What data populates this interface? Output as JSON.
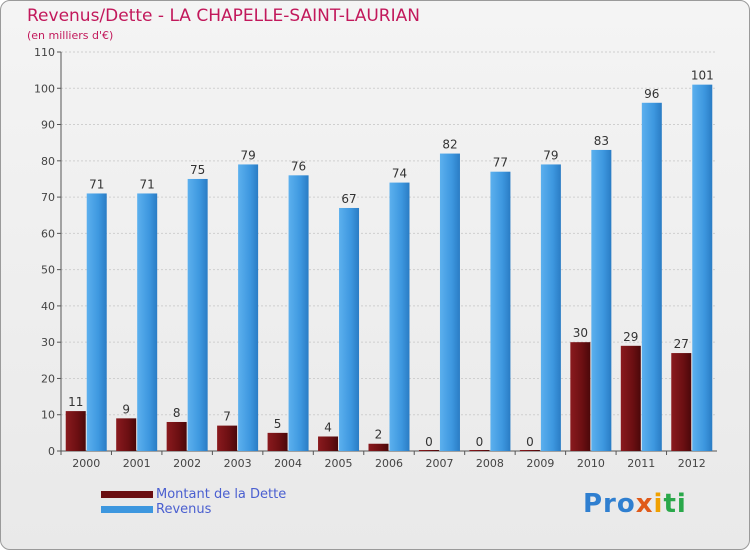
{
  "header": {
    "title": "Revenus/Dette - LA CHAPELLE-SAINT-LAURIAN",
    "subtitle": "(en milliers d'€)"
  },
  "logo": {
    "part1": "Pro",
    "part2": "x",
    "part3": "i",
    "part4": "ti"
  },
  "colors": {
    "dette": "#6b0f12",
    "revenus": "#3d97df",
    "title": "#c2185b",
    "legend_text": "#4a5fd0"
  },
  "chart_data": {
    "type": "bar",
    "title": "Revenus/Dette - LA CHAPELLE-SAINT-LAURIAN",
    "ylabel": "(en milliers d'€)",
    "xlabel": "",
    "ylim": [
      0,
      110
    ],
    "yticks": [
      0,
      10,
      20,
      30,
      40,
      50,
      60,
      70,
      80,
      90,
      100,
      110
    ],
    "grid": true,
    "legend_position": "bottom-left",
    "categories": [
      "2000",
      "2001",
      "2002",
      "2003",
      "2004",
      "2005",
      "2006",
      "2007",
      "2008",
      "2009",
      "2010",
      "2011",
      "2012"
    ],
    "series": [
      {
        "name": "Montant de la Dette",
        "values": [
          11,
          9,
          8,
          7,
          5,
          4,
          2,
          0,
          0,
          0,
          30,
          29,
          27
        ]
      },
      {
        "name": "Revenus",
        "values": [
          71,
          71,
          75,
          79,
          76,
          67,
          74,
          82,
          77,
          79,
          83,
          96,
          101
        ]
      }
    ]
  }
}
